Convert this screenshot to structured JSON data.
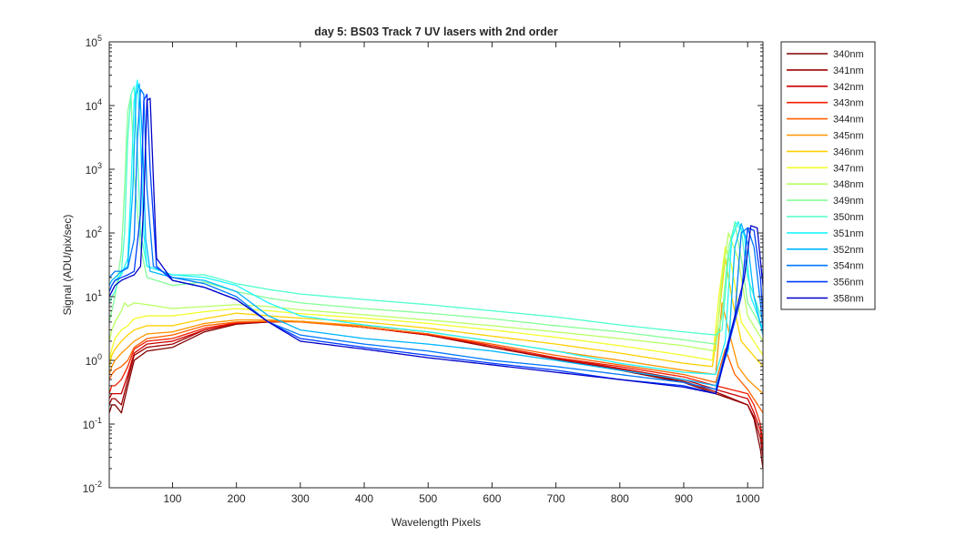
{
  "chart_data": {
    "type": "line",
    "title": "day 5: BS03  Track 7 UV lasers with 2nd order",
    "xlabel": "Wavelength Pixels",
    "ylabel": "Signal (ADU/pix/sec)",
    "x_scale": "linear",
    "y_scale": "log",
    "xlim": [
      1,
      1024
    ],
    "ylim": [
      0.01,
      100000
    ],
    "x_ticks": [
      100,
      200,
      300,
      400,
      500,
      600,
      700,
      800,
      900,
      1000
    ],
    "y_ticks": [
      {
        "value": 0.01,
        "base": "10",
        "exp": "-2"
      },
      {
        "value": 0.1,
        "base": "10",
        "exp": "-1"
      },
      {
        "value": 1,
        "base": "10",
        "exp": "0"
      },
      {
        "value": 10,
        "base": "10",
        "exp": "1"
      },
      {
        "value": 100,
        "base": "10",
        "exp": "2"
      },
      {
        "value": 1000,
        "base": "10",
        "exp": "3"
      },
      {
        "value": 10000,
        "base": "10",
        "exp": "4"
      },
      {
        "value": 100000,
        "base": "10",
        "exp": "5"
      }
    ],
    "grid": false,
    "legend_position": "outside-right",
    "series": [
      {
        "name": "340nm",
        "color": "#800000",
        "x": [
          1,
          5,
          10,
          20,
          30,
          40,
          60,
          100,
          150,
          200,
          250,
          300,
          400,
          500,
          600,
          700,
          800,
          900,
          950,
          1000,
          1010,
          1020,
          1024
        ],
        "y": [
          0.15,
          0.2,
          0.2,
          0.15,
          0.4,
          1.0,
          1.4,
          1.6,
          2.8,
          3.7,
          4.0,
          4.1,
          3.3,
          2.5,
          1.6,
          1.05,
          0.7,
          0.45,
          0.3,
          0.2,
          0.12,
          0.04,
          0.02
        ]
      },
      {
        "name": "341nm",
        "color": "#a00000",
        "x": [
          1,
          5,
          10,
          20,
          30,
          40,
          60,
          100,
          150,
          200,
          250,
          300,
          400,
          500,
          600,
          700,
          800,
          900,
          950,
          1000,
          1010,
          1020,
          1024
        ],
        "y": [
          0.2,
          0.25,
          0.25,
          0.2,
          0.5,
          1.2,
          1.6,
          1.8,
          3.0,
          3.8,
          4.0,
          4.1,
          3.3,
          2.5,
          1.6,
          1.05,
          0.72,
          0.47,
          0.32,
          0.2,
          0.13,
          0.06,
          0.03
        ]
      },
      {
        "name": "342nm",
        "color": "#cc0000",
        "x": [
          1,
          5,
          10,
          20,
          30,
          40,
          60,
          100,
          150,
          200,
          250,
          300,
          400,
          500,
          600,
          700,
          800,
          900,
          950,
          1000,
          1010,
          1020,
          1024
        ],
        "y": [
          0.25,
          0.3,
          0.3,
          0.3,
          0.6,
          1.3,
          1.8,
          2.0,
          3.0,
          3.8,
          4.1,
          4.1,
          3.3,
          2.5,
          1.7,
          1.1,
          0.75,
          0.5,
          0.35,
          0.25,
          0.15,
          0.08,
          0.04
        ]
      },
      {
        "name": "343nm",
        "color": "#f21d00",
        "x": [
          1,
          5,
          10,
          20,
          30,
          40,
          60,
          100,
          150,
          200,
          250,
          300,
          400,
          500,
          600,
          700,
          800,
          900,
          950,
          1000,
          1010,
          1020,
          1024
        ],
        "y": [
          0.3,
          0.4,
          0.4,
          0.5,
          0.8,
          1.5,
          2.0,
          2.2,
          3.2,
          3.9,
          4.1,
          4.1,
          3.3,
          2.6,
          1.7,
          1.1,
          0.8,
          0.55,
          0.4,
          0.3,
          0.2,
          0.1,
          0.05
        ]
      },
      {
        "name": "344nm",
        "color": "#ff6000",
        "x": [
          1,
          5,
          10,
          20,
          30,
          40,
          60,
          100,
          150,
          200,
          250,
          300,
          400,
          500,
          600,
          700,
          800,
          900,
          950,
          965,
          980,
          1000,
          1024
        ],
        "y": [
          0.5,
          0.6,
          0.7,
          0.8,
          1.0,
          1.6,
          2.2,
          2.5,
          3.5,
          4.0,
          4.1,
          4.0,
          3.3,
          2.6,
          1.8,
          1.2,
          0.85,
          0.6,
          0.45,
          1.5,
          0.6,
          0.35,
          0.15
        ]
      },
      {
        "name": "345nm",
        "color": "#ff9500",
        "x": [
          1,
          5,
          10,
          20,
          30,
          40,
          60,
          100,
          150,
          200,
          250,
          300,
          400,
          500,
          600,
          700,
          800,
          900,
          950,
          960,
          970,
          985,
          1000,
          1024
        ],
        "y": [
          0.6,
          0.8,
          1.0,
          1.3,
          1.6,
          2.0,
          2.6,
          2.8,
          3.8,
          4.3,
          4.3,
          4.1,
          3.5,
          2.8,
          2.0,
          1.4,
          1.0,
          0.7,
          0.6,
          8.0,
          3.0,
          0.8,
          0.5,
          0.3
        ]
      },
      {
        "name": "346nm",
        "color": "#ffd000",
        "x": [
          1,
          5,
          10,
          20,
          30,
          40,
          60,
          100,
          150,
          200,
          250,
          300,
          400,
          500,
          600,
          700,
          800,
          900,
          945,
          955,
          965,
          975,
          990,
          1024
        ],
        "y": [
          0.8,
          1.2,
          1.5,
          2.0,
          2.5,
          3.0,
          3.5,
          3.5,
          4.5,
          5.5,
          5.0,
          4.6,
          4.0,
          3.2,
          2.4,
          1.8,
          1.3,
          0.9,
          0.8,
          5.0,
          40.0,
          10.0,
          2.0,
          0.8
        ]
      },
      {
        "name": "347nm",
        "color": "#f2ff2a",
        "x": [
          1,
          5,
          10,
          20,
          30,
          40,
          60,
          100,
          150,
          200,
          250,
          300,
          400,
          500,
          600,
          700,
          800,
          900,
          945,
          955,
          965,
          975,
          990,
          1024
        ],
        "y": [
          1.0,
          1.5,
          2.2,
          3.0,
          3.5,
          4.5,
          5.0,
          5.0,
          5.8,
          6.5,
          6.0,
          5.4,
          4.6,
          3.8,
          3.0,
          2.3,
          1.7,
          1.2,
          1.0,
          10.0,
          60.0,
          30.0,
          4.0,
          1.2
        ]
      },
      {
        "name": "348nm",
        "color": "#b8ff64",
        "x": [
          1,
          5,
          10,
          20,
          25,
          30,
          40,
          60,
          100,
          150,
          200,
          250,
          300,
          400,
          500,
          600,
          700,
          800,
          900,
          950,
          960,
          970,
          985,
          1000,
          1024
        ],
        "y": [
          2.0,
          3.0,
          4.0,
          6.0,
          8.0,
          7.0,
          8.0,
          7.5,
          6.5,
          7.0,
          7.5,
          7.0,
          6.2,
          5.2,
          4.3,
          3.5,
          2.8,
          2.2,
          1.7,
          1.4,
          20.0,
          100.0,
          40.0,
          5.0,
          2.0
        ]
      },
      {
        "name": "349nm",
        "color": "#84ff98",
        "x": [
          1,
          5,
          10,
          20,
          25,
          28,
          30,
          35,
          40,
          50,
          60,
          100,
          150,
          200,
          250,
          300,
          400,
          500,
          600,
          700,
          800,
          900,
          950,
          960,
          970,
          980,
          990,
          1000,
          1024
        ],
        "y": [
          4.0,
          6.0,
          10.0,
          50.0,
          500.0,
          3000.0,
          8000.0,
          15000.0,
          800.0,
          60.0,
          20.0,
          15.0,
          17.0,
          12.0,
          9.5,
          8.0,
          6.5,
          5.5,
          4.5,
          3.5,
          2.8,
          2.1,
          1.8,
          5.0,
          60.0,
          140.0,
          40.0,
          8.0,
          3.0
        ]
      },
      {
        "name": "350nm",
        "color": "#4fffcc",
        "x": [
          1,
          5,
          10,
          20,
          25,
          30,
          35,
          40,
          45,
          50,
          60,
          100,
          150,
          200,
          250,
          300,
          400,
          500,
          600,
          700,
          800,
          900,
          950,
          960,
          970,
          980,
          990,
          1000,
          1024
        ],
        "y": [
          8.0,
          10.0,
          12.0,
          25.0,
          100.0,
          3000.0,
          15000.0,
          20000.0,
          2000.0,
          100.0,
          30.0,
          22.0,
          22.0,
          16.0,
          13.0,
          11.0,
          9.0,
          7.5,
          6.0,
          4.8,
          3.6,
          2.8,
          2.5,
          3.0,
          40.0,
          150.0,
          110.0,
          20.0,
          4.0
        ]
      },
      {
        "name": "351nm",
        "color": "#1cf6ff",
        "x": [
          1,
          5,
          10,
          20,
          30,
          35,
          40,
          45,
          50,
          55,
          60,
          100,
          150,
          200,
          250,
          300,
          400,
          500,
          600,
          700,
          800,
          900,
          950,
          965,
          975,
          985,
          995,
          1005,
          1024
        ],
        "y": [
          12.0,
          15.0,
          18.0,
          22.0,
          40.0,
          500.0,
          12000.0,
          25000.0,
          3000.0,
          100.0,
          30.0,
          22.0,
          20.0,
          15.0,
          8.0,
          5.0,
          3.6,
          2.8,
          2.0,
          1.4,
          0.9,
          0.65,
          0.6,
          2.0,
          80.0,
          150.0,
          90.0,
          10.0,
          3.0
        ]
      },
      {
        "name": "352nm",
        "color": "#00b6ff",
        "x": [
          1,
          5,
          10,
          20,
          30,
          38,
          43,
          48,
          53,
          58,
          65,
          100,
          150,
          200,
          250,
          300,
          400,
          500,
          600,
          700,
          800,
          900,
          950,
          970,
          980,
          990,
          1000,
          1010,
          1024
        ],
        "y": [
          15.0,
          18.0,
          20.0,
          25.0,
          30.0,
          500.0,
          15000.0,
          22000.0,
          3000.0,
          80.0,
          25.0,
          20.0,
          18.0,
          12.0,
          5.0,
          3.0,
          2.2,
          1.8,
          1.4,
          1.0,
          0.7,
          0.5,
          0.4,
          1.5,
          60.0,
          140.0,
          70.0,
          10.0,
          2.5
        ]
      },
      {
        "name": "354nm",
        "color": "#0078ff",
        "x": [
          1,
          5,
          10,
          20,
          30,
          40,
          45,
          50,
          55,
          60,
          70,
          100,
          150,
          200,
          250,
          300,
          400,
          500,
          600,
          700,
          800,
          900,
          950,
          980,
          990,
          1000,
          1010,
          1020,
          1024
        ],
        "y": [
          20.0,
          22.0,
          25.0,
          25.0,
          28.0,
          80.0,
          3000.0,
          18000.0,
          15000.0,
          500.0,
          30.0,
          20.0,
          16.0,
          10.0,
          4.0,
          2.5,
          1.8,
          1.4,
          1.0,
          0.8,
          0.6,
          0.45,
          0.35,
          5.0,
          100.0,
          120.0,
          60.0,
          8.0,
          3.0
        ]
      },
      {
        "name": "356nm",
        "color": "#003cff",
        "x": [
          1,
          5,
          10,
          20,
          30,
          40,
          50,
          55,
          60,
          65,
          75,
          100,
          150,
          200,
          250,
          300,
          400,
          500,
          600,
          700,
          800,
          900,
          950,
          990,
          1000,
          1010,
          1020,
          1024
        ],
        "y": [
          12.0,
          15.0,
          18.0,
          20.0,
          22.0,
          25.0,
          200.0,
          12000.0,
          15000.0,
          1000.0,
          30.0,
          18.0,
          14.0,
          9.0,
          4.0,
          2.2,
          1.6,
          1.2,
          0.9,
          0.7,
          0.5,
          0.4,
          0.3,
          10.0,
          120.0,
          110.0,
          20.0,
          5.0
        ]
      },
      {
        "name": "358nm",
        "color": "#0000c8",
        "x": [
          1,
          5,
          10,
          20,
          30,
          40,
          50,
          55,
          60,
          65,
          75,
          100,
          150,
          200,
          250,
          300,
          400,
          500,
          600,
          700,
          800,
          900,
          950,
          995,
          1005,
          1015,
          1024
        ],
        "y": [
          10.0,
          12.0,
          15.0,
          18.0,
          20.0,
          22.0,
          30.0,
          300.0,
          12000.0,
          13000.0,
          40.0,
          18.0,
          14.0,
          9.0,
          4.0,
          2.0,
          1.5,
          1.1,
          0.85,
          0.65,
          0.5,
          0.38,
          0.3,
          20.0,
          130.0,
          120.0,
          15.0
        ]
      }
    ]
  }
}
